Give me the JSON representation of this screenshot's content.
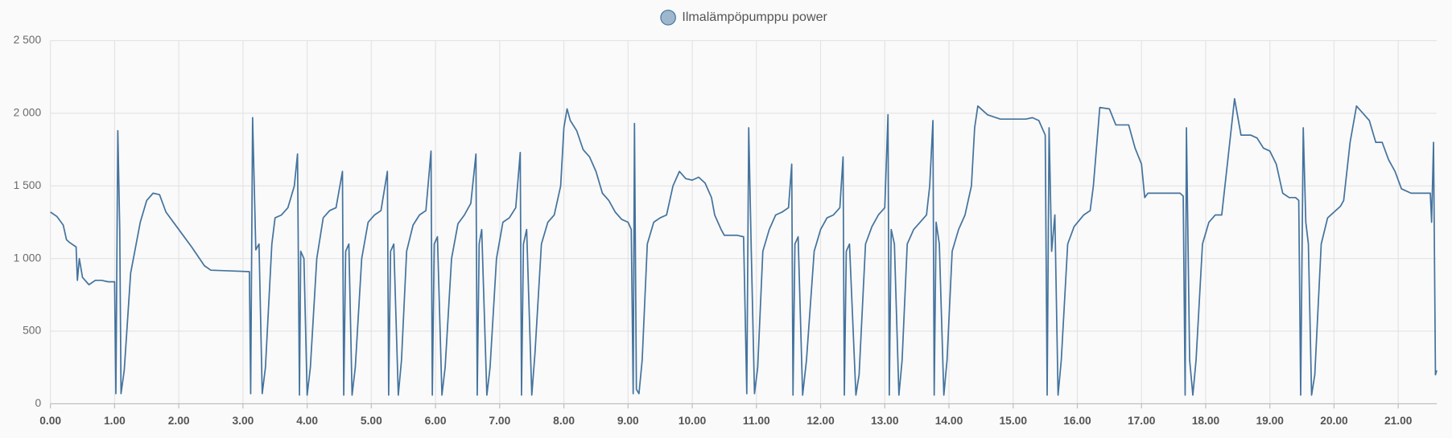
{
  "chart_data": {
    "type": "line",
    "x": [
      0,
      0.1,
      0.2,
      0.25,
      0.3,
      0.4,
      0.42,
      0.45,
      0.5,
      0.6,
      0.7,
      0.8,
      0.9,
      1.0,
      1.02,
      1.05,
      1.08,
      1.1,
      1.15,
      1.25,
      1.4,
      1.5,
      1.6,
      1.7,
      1.8,
      2.0,
      2.2,
      2.4,
      2.5,
      2.8,
      3.1,
      3.12,
      3.15,
      3.2,
      3.25,
      3.3,
      3.35,
      3.45,
      3.5,
      3.6,
      3.7,
      3.8,
      3.85,
      3.88,
      3.9,
      3.95,
      4.0,
      4.05,
      4.15,
      4.25,
      4.35,
      4.45,
      4.55,
      4.57,
      4.6,
      4.65,
      4.7,
      4.75,
      4.85,
      4.95,
      5.05,
      5.15,
      5.25,
      5.27,
      5.3,
      5.35,
      5.42,
      5.47,
      5.55,
      5.65,
      5.75,
      5.85,
      5.93,
      5.95,
      5.98,
      6.03,
      6.1,
      6.15,
      6.25,
      6.35,
      6.45,
      6.55,
      6.63,
      6.65,
      6.68,
      6.72,
      6.8,
      6.85,
      6.95,
      7.05,
      7.15,
      7.25,
      7.32,
      7.34,
      7.37,
      7.42,
      7.5,
      7.55,
      7.65,
      7.75,
      7.85,
      7.95,
      8.0,
      8.05,
      8.1,
      8.2,
      8.3,
      8.4,
      8.5,
      8.6,
      8.7,
      8.8,
      8.9,
      9.0,
      9.05,
      9.08,
      9.1,
      9.13,
      9.17,
      9.22,
      9.3,
      9.4,
      9.5,
      9.6,
      9.7,
      9.8,
      9.9,
      10.0,
      10.1,
      10.2,
      10.3,
      10.35,
      10.45,
      10.5,
      10.7,
      10.8,
      10.85,
      10.88,
      10.92,
      10.97,
      11.02,
      11.1,
      11.2,
      11.3,
      11.4,
      11.5,
      11.55,
      11.57,
      11.6,
      11.65,
      11.72,
      11.78,
      11.9,
      12.0,
      12.1,
      12.2,
      12.3,
      12.35,
      12.37,
      12.4,
      12.45,
      12.55,
      12.6,
      12.7,
      12.8,
      12.9,
      13.0,
      13.05,
      13.07,
      13.1,
      13.15,
      13.22,
      13.27,
      13.35,
      13.45,
      13.55,
      13.65,
      13.7,
      13.75,
      13.77,
      13.8,
      13.85,
      13.92,
      13.97,
      14.05,
      14.15,
      14.25,
      14.35,
      14.4,
      14.45,
      14.6,
      14.8,
      15.0,
      15.2,
      15.3,
      15.4,
      15.5,
      15.53,
      15.56,
      15.6,
      15.65,
      15.7,
      15.75,
      15.85,
      15.95,
      16.1,
      16.2,
      16.25,
      16.35,
      16.5,
      16.6,
      16.8,
      16.9,
      17.0,
      17.05,
      17.1,
      17.2,
      17.4,
      17.6,
      17.65,
      17.68,
      17.7,
      17.75,
      17.8,
      17.85,
      17.95,
      18.05,
      18.15,
      18.25,
      18.35,
      18.45,
      18.55,
      18.7,
      18.8,
      18.9,
      19.0,
      19.1,
      19.2,
      19.3,
      19.4,
      19.45,
      19.48,
      19.52,
      19.56,
      19.6,
      19.65,
      19.7,
      19.8,
      19.9,
      20.0,
      20.1,
      20.15,
      20.25,
      20.35,
      20.45,
      20.55,
      20.65,
      20.75,
      20.85,
      20.95,
      21.05,
      21.2,
      21.35,
      21.45,
      21.5,
      21.52,
      21.55,
      21.58,
      21.6
    ],
    "series": [
      {
        "name": "Ilmalämpöpumppu power",
        "color": "#44739e",
        "values": [
          1320,
          1290,
          1230,
          1130,
          1110,
          1080,
          850,
          1000,
          870,
          820,
          850,
          850,
          840,
          840,
          70,
          1880,
          1200,
          70,
          230,
          900,
          1250,
          1400,
          1450,
          1440,
          1320,
          1200,
          1080,
          950,
          920,
          915,
          910,
          70,
          1970,
          1060,
          1100,
          70,
          250,
          1100,
          1280,
          1300,
          1350,
          1500,
          1720,
          60,
          1050,
          1000,
          60,
          250,
          1000,
          1280,
          1330,
          1350,
          1600,
          60,
          1050,
          1100,
          60,
          250,
          1000,
          1250,
          1300,
          1330,
          1600,
          60,
          1050,
          1100,
          60,
          300,
          1050,
          1230,
          1300,
          1330,
          1740,
          60,
          1100,
          1150,
          60,
          250,
          1000,
          1240,
          1300,
          1380,
          1720,
          60,
          1100,
          1200,
          60,
          250,
          1000,
          1250,
          1280,
          1350,
          1730,
          60,
          1100,
          1200,
          60,
          350,
          1100,
          1250,
          1300,
          1500,
          1900,
          2030,
          1950,
          1880,
          1750,
          1700,
          1600,
          1450,
          1400,
          1320,
          1270,
          1250,
          1200,
          70,
          1930,
          100,
          70,
          300,
          1100,
          1250,
          1280,
          1300,
          1500,
          1600,
          1550,
          1540,
          1560,
          1520,
          1420,
          1300,
          1200,
          1160,
          1160,
          1150,
          70,
          1900,
          1050,
          70,
          250,
          1050,
          1200,
          1300,
          1320,
          1350,
          1650,
          60,
          1100,
          1150,
          60,
          300,
          1050,
          1200,
          1280,
          1300,
          1350,
          1700,
          60,
          1050,
          1100,
          60,
          200,
          1100,
          1220,
          1300,
          1350,
          1990,
          60,
          1200,
          1100,
          60,
          300,
          1100,
          1200,
          1250,
          1300,
          1500,
          1950,
          60,
          1250,
          1100,
          60,
          300,
          1050,
          1200,
          1300,
          1500,
          1900,
          2050,
          1990,
          1960,
          1960,
          1960,
          1970,
          1950,
          1850,
          60,
          1900,
          1050,
          1300,
          60,
          300,
          1100,
          1220,
          1300,
          1330,
          1500,
          2040,
          2030,
          1920,
          1920,
          1760,
          1650,
          1420,
          1450,
          1450,
          1450,
          1450,
          1430,
          60,
          1900,
          300,
          60,
          300,
          1100,
          1250,
          1300,
          1300,
          1700,
          2100,
          1850,
          1850,
          1830,
          1760,
          1740,
          1650,
          1450,
          1420,
          1420,
          1400,
          60,
          1900,
          1250,
          1100,
          60,
          200,
          1100,
          1280,
          1320,
          1360,
          1400,
          1800,
          2050,
          2000,
          1950,
          1800,
          1800,
          1680,
          1600,
          1480,
          1450,
          1450,
          1450,
          1450,
          1250,
          1800,
          200,
          230
        ]
      }
    ],
    "xlim": [
      0,
      21.6
    ],
    "ylim": [
      0,
      2500
    ],
    "xticks": [
      {
        "value": 0,
        "label": "0.00"
      },
      {
        "value": 1,
        "label": "1.00"
      },
      {
        "value": 2,
        "label": "2.00"
      },
      {
        "value": 3,
        "label": "3.00"
      },
      {
        "value": 4,
        "label": "4.00"
      },
      {
        "value": 5,
        "label": "5.00"
      },
      {
        "value": 6,
        "label": "6.00"
      },
      {
        "value": 7,
        "label": "7.00"
      },
      {
        "value": 8,
        "label": "8.00"
      },
      {
        "value": 9,
        "label": "9.00"
      },
      {
        "value": 10,
        "label": "10.00"
      },
      {
        "value": 11,
        "label": "11.00"
      },
      {
        "value": 12,
        "label": "12.00"
      },
      {
        "value": 13,
        "label": "13.00"
      },
      {
        "value": 14,
        "label": "14.00"
      },
      {
        "value": 15,
        "label": "15.00"
      },
      {
        "value": 16,
        "label": "16.00"
      },
      {
        "value": 17,
        "label": "17.00"
      },
      {
        "value": 18,
        "label": "18.00"
      },
      {
        "value": 19,
        "label": "19.00"
      },
      {
        "value": 20,
        "label": "20.00"
      },
      {
        "value": 21,
        "label": "21.00"
      }
    ],
    "yticks": [
      0,
      500,
      {
        "value": 1000,
        "label": "1 000"
      },
      {
        "value": 1500,
        "label": "1 500"
      },
      {
        "value": 2000,
        "label": "2 000"
      },
      {
        "value": 2500,
        "label": "2 500"
      }
    ],
    "grid": true,
    "legend": "top"
  }
}
